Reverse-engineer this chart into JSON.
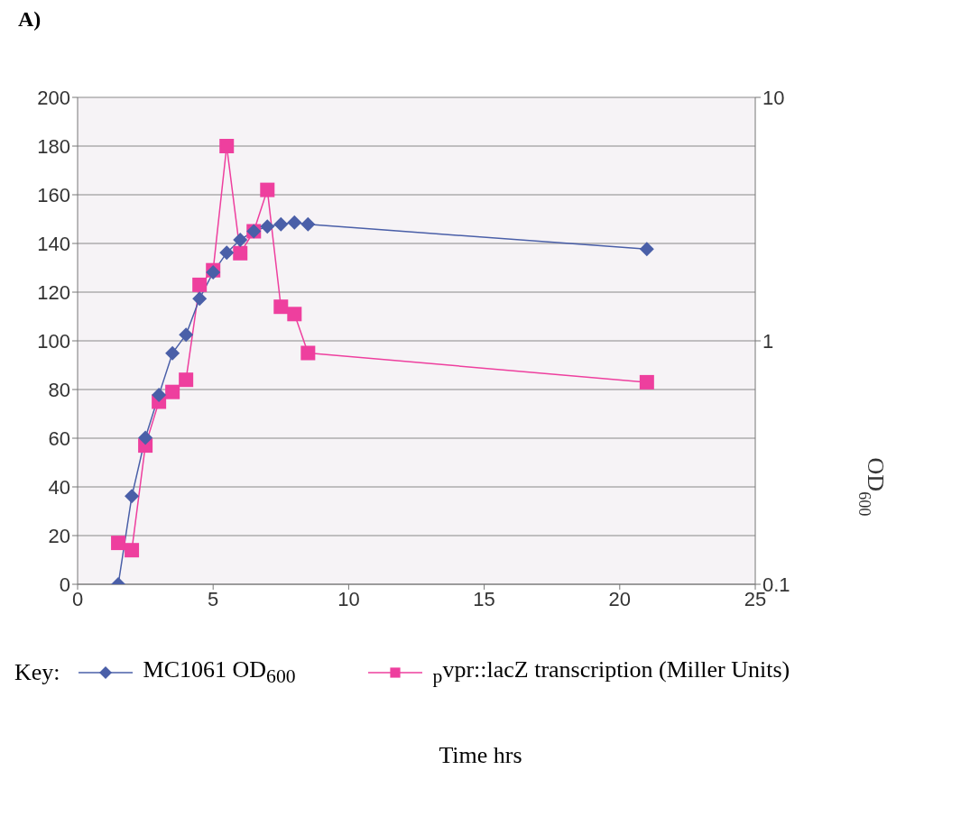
{
  "chart_data": {
    "type": "line",
    "title": "A)",
    "annotations": [
      "Time hrs"
    ],
    "y2label": "OD$_{600}$",
    "legend_title": "Key:",
    "x": [
      1.5,
      2,
      2.5,
      3,
      3.5,
      4,
      4.5,
      5,
      5.5,
      6,
      6.5,
      7,
      7.5,
      8,
      8.5,
      21
    ],
    "series": [
      {
        "name": "MC1061 OD$_{600}$",
        "color": "#4a5fa8",
        "marker": "diamond",
        "axis": "y2",
        "values": [
          0.1,
          0.23,
          0.4,
          0.6,
          0.89,
          1.06,
          1.49,
          1.91,
          2.3,
          2.6,
          2.82,
          2.95,
          3.01,
          3.06,
          3.01,
          2.38
        ]
      },
      {
        "name": "$_{p}$vpr::lacZ transcription (Miller Units)",
        "color": "#ee3f9e",
        "marker": "square",
        "values": [
          17,
          14,
          57,
          75,
          79,
          84,
          123,
          129,
          180,
          136,
          145,
          162,
          114,
          111,
          95,
          83
        ]
      }
    ],
    "xlim": [
      0,
      25
    ],
    "xticks": [
      0,
      5,
      10,
      15,
      20,
      25
    ],
    "ylim": [
      0,
      200
    ],
    "yticks": [
      0,
      20,
      40,
      60,
      80,
      100,
      120,
      140,
      160,
      180,
      200
    ],
    "y2lim": [
      0.1,
      10
    ],
    "y2ticks": [
      0.1,
      1,
      10
    ],
    "log": "y2",
    "grid": "y",
    "legend": "bottom"
  }
}
